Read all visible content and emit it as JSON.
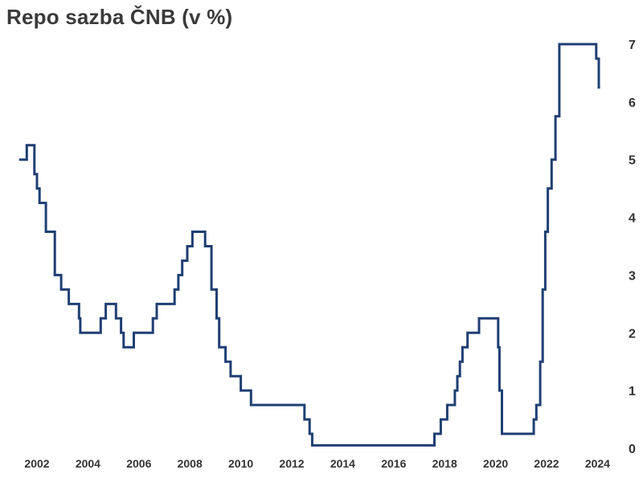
{
  "chart_data": {
    "type": "line",
    "title": "Repo sazba ČNB (v %)",
    "xlabel": "",
    "ylabel": "",
    "line_style": "step",
    "color": "#1f3f73",
    "xlim": [
      2001.3,
      2024.3
    ],
    "ylim": [
      0,
      7
    ],
    "grid": false,
    "y_axis_side": "right",
    "x_ticks": [
      2002,
      2004,
      2006,
      2008,
      2010,
      2012,
      2014,
      2016,
      2018,
      2020,
      2022,
      2024
    ],
    "x_tick_labels": [
      "2002",
      "2004",
      "2006",
      "2008",
      "2010",
      "2012",
      "2014",
      "2016",
      "2018",
      "2020",
      "2022",
      "2024"
    ],
    "y_ticks": [
      0,
      1,
      2,
      3,
      4,
      5,
      6,
      7
    ],
    "y_tick_labels": [
      "0",
      "1",
      "2",
      "3",
      "4",
      "5",
      "6",
      "7"
    ],
    "series": [
      {
        "x": [
          2001.3,
          2001.6,
          2001.9,
          2002.0,
          2002.1,
          2002.35,
          2002.7,
          2002.95,
          2003.25,
          2003.65,
          2003.7,
          2004.5,
          2004.7,
          2005.1,
          2005.3,
          2005.4,
          2005.8,
          2006.55,
          2006.7,
          2007.4,
          2007.55,
          2007.7,
          2007.9,
          2008.1,
          2008.6,
          2008.85,
          2009.05,
          2009.15,
          2009.4,
          2009.6,
          2010.0,
          2010.4,
          2012.5,
          2012.7,
          2012.8,
          2017.6,
          2017.85,
          2018.1,
          2018.4,
          2018.5,
          2018.6,
          2018.7,
          2018.9,
          2019.35,
          2020.1,
          2020.15,
          2020.25,
          2020.35,
          2021.5,
          2021.6,
          2021.75,
          2021.85,
          2021.95,
          2022.05,
          2022.2,
          2022.35,
          2022.5,
          2023.95,
          2024.05,
          2024.1
        ],
        "y": [
          5.0,
          5.25,
          4.75,
          4.5,
          4.25,
          3.75,
          3.0,
          2.75,
          2.5,
          2.25,
          2.0,
          2.25,
          2.5,
          2.25,
          2.0,
          1.75,
          2.0,
          2.25,
          2.5,
          2.75,
          3.0,
          3.25,
          3.5,
          3.75,
          3.5,
          2.75,
          2.25,
          1.75,
          1.5,
          1.25,
          1.0,
          0.75,
          0.5,
          0.25,
          0.05,
          0.25,
          0.5,
          0.75,
          1.0,
          1.25,
          1.5,
          1.75,
          2.0,
          2.25,
          1.75,
          1.0,
          0.25,
          0.25,
          0.5,
          0.75,
          1.5,
          2.75,
          3.75,
          4.5,
          5.0,
          5.75,
          7.0,
          6.75,
          6.25,
          6.25
        ]
      }
    ]
  }
}
